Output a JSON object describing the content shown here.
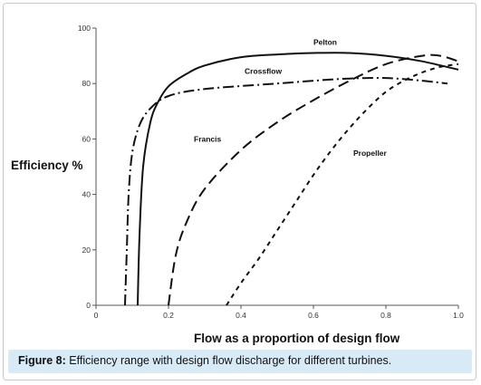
{
  "figure": {
    "label": "Figure 8:",
    "caption": " Efficiency range with design flow discharge for different turbines."
  },
  "colors": {
    "caption_background": "#d9eaf7",
    "axis": "#555555",
    "curve": "#111111"
  },
  "chart_data": {
    "type": "line",
    "title": "",
    "xlabel": "Flow as a proportion of design flow",
    "ylabel": "Efficiency %",
    "xlim": [
      0,
      1.0
    ],
    "ylim": [
      0,
      100
    ],
    "x_ticks": [
      0,
      0.2,
      0.4,
      0.6,
      0.8,
      1.0
    ],
    "x_tick_labels": [
      "0",
      "0.2",
      "0.4",
      "0.6",
      "0.8",
      "1.0"
    ],
    "y_ticks": [
      0,
      20,
      40,
      60,
      80,
      100
    ],
    "y_tick_labels": [
      "0",
      "20",
      "40",
      "60",
      "80",
      "100"
    ],
    "grid": false,
    "legend": "inline labels",
    "series": [
      {
        "name": "Pelton",
        "style": "solid",
        "label_at": [
          0.6,
          94
        ],
        "points": [
          [
            0.115,
            0
          ],
          [
            0.12,
            25
          ],
          [
            0.13,
            50
          ],
          [
            0.15,
            66
          ],
          [
            0.17,
            73
          ],
          [
            0.2,
            79
          ],
          [
            0.25,
            83.5
          ],
          [
            0.3,
            86.5
          ],
          [
            0.4,
            89.5
          ],
          [
            0.5,
            90.5
          ],
          [
            0.6,
            91
          ],
          [
            0.7,
            91
          ],
          [
            0.8,
            90
          ],
          [
            0.9,
            88
          ],
          [
            1.0,
            85
          ]
        ]
      },
      {
        "name": "Crossflow",
        "style": "dashdot",
        "label_at": [
          0.41,
          83.5
        ],
        "points": [
          [
            0.08,
            0
          ],
          [
            0.085,
            20
          ],
          [
            0.09,
            40
          ],
          [
            0.1,
            55
          ],
          [
            0.12,
            65
          ],
          [
            0.15,
            71
          ],
          [
            0.2,
            75.5
          ],
          [
            0.3,
            78
          ],
          [
            0.5,
            80
          ],
          [
            0.6,
            81
          ],
          [
            0.7,
            81.8
          ],
          [
            0.8,
            82
          ],
          [
            0.9,
            81
          ],
          [
            0.97,
            80
          ]
        ]
      },
      {
        "name": "Francis",
        "style": "dash",
        "label_at": [
          0.27,
          59
        ],
        "points": [
          [
            0.2,
            0
          ],
          [
            0.22,
            18
          ],
          [
            0.25,
            30
          ],
          [
            0.3,
            42
          ],
          [
            0.4,
            56
          ],
          [
            0.5,
            66
          ],
          [
            0.6,
            74
          ],
          [
            0.7,
            81
          ],
          [
            0.8,
            87
          ],
          [
            0.9,
            90
          ],
          [
            0.95,
            90
          ],
          [
            1.0,
            88
          ]
        ]
      },
      {
        "name": "Propeller",
        "style": "shortdash",
        "label_at": [
          0.71,
          54
        ],
        "points": [
          [
            0.36,
            0
          ],
          [
            0.4,
            8
          ],
          [
            0.45,
            17
          ],
          [
            0.5,
            27
          ],
          [
            0.55,
            37
          ],
          [
            0.6,
            47
          ],
          [
            0.65,
            56
          ],
          [
            0.7,
            64
          ],
          [
            0.75,
            71
          ],
          [
            0.8,
            77
          ],
          [
            0.85,
            81
          ],
          [
            0.9,
            84
          ],
          [
            0.95,
            86
          ],
          [
            1.0,
            87
          ]
        ]
      }
    ]
  }
}
